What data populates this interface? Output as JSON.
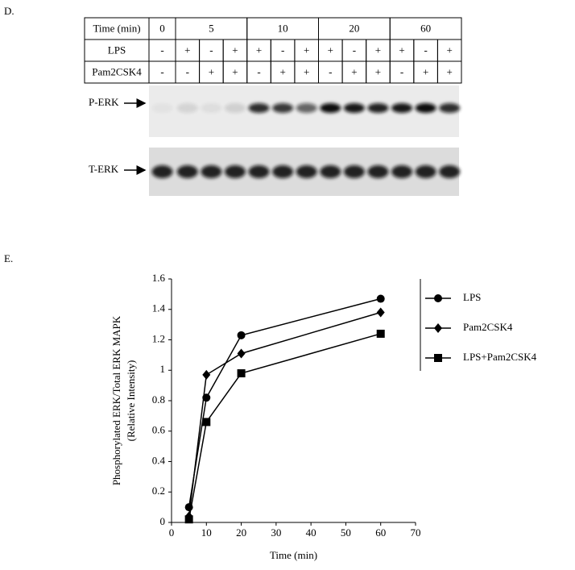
{
  "blot_panel": {
    "label": "D.",
    "table": {
      "time_header": "Time (min)",
      "times": [
        "0",
        "5",
        "10",
        "20",
        "60"
      ],
      "rows": [
        {
          "label": "LPS",
          "cells": [
            "-",
            "+",
            "-",
            "+",
            "+",
            "-",
            "+",
            "+",
            "-",
            "+",
            "+",
            "-",
            "+"
          ]
        },
        {
          "label": "Pam2CSK4",
          "cells": [
            "-",
            "-",
            "+",
            "+",
            "-",
            "+",
            "+",
            "-",
            "+",
            "+",
            "-",
            "+",
            "+"
          ]
        }
      ]
    },
    "blots": [
      {
        "label": "P-ERK"
      },
      {
        "label": "T-ERK"
      }
    ]
  },
  "chart_panel_label": "E.",
  "chart_data": {
    "type": "line",
    "xlabel": "Time (min)",
    "ylabel": [
      "Phosphorylated ERK/Total ERK MAPK",
      "(Relative Intensity)"
    ],
    "x": [
      5,
      10,
      20,
      60
    ],
    "series": [
      {
        "name": "LPS",
        "color": "#000000",
        "marker": "circle",
        "values": [
          0.1,
          0.82,
          1.23,
          1.47
        ]
      },
      {
        "name": "Pam2CSK4",
        "color": "#000000",
        "marker": "diamond",
        "values": [
          0.04,
          0.97,
          1.11,
          1.38
        ]
      },
      {
        "name": "LPS+Pam2CSK4",
        "color": "#000000",
        "marker": "square",
        "values": [
          0.02,
          0.66,
          0.98,
          1.24
        ]
      }
    ],
    "xlim": [
      0,
      70
    ],
    "xticks": [
      0,
      10,
      20,
      30,
      40,
      50,
      60,
      70
    ],
    "ylim": [
      0,
      1.6
    ],
    "yticks": [
      0,
      0.2,
      0.4,
      0.6,
      0.8,
      1,
      1.2,
      1.4,
      1.6
    ],
    "legend": "right"
  }
}
